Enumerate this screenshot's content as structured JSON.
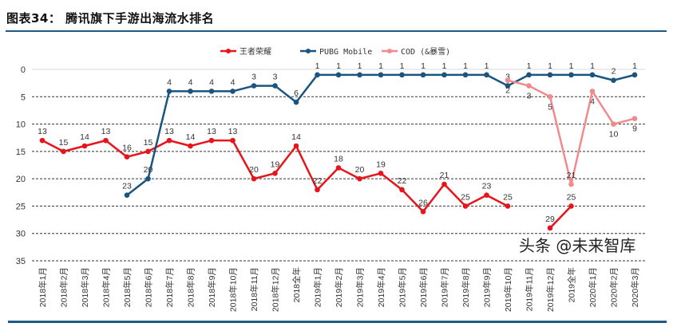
{
  "title": "图表34：  腾讯旗下手游出海流水排名",
  "watermark": "头条 @未来智库",
  "chart_data": {
    "type": "line",
    "title": "",
    "xlabel": "",
    "ylabel": "",
    "y_inverted": true,
    "ylim": [
      0,
      35
    ],
    "yticks": [
      0,
      5,
      10,
      15,
      20,
      25,
      30,
      35
    ],
    "grid": "horizontal dashed",
    "legend_position": "top",
    "categories": [
      "2018年1月",
      "2018年2月",
      "2018年3月",
      "2018年4月",
      "2018年5月",
      "2018年6月",
      "2018年7月",
      "2018年8月",
      "2018年9月",
      "2018年10月",
      "2018年11月",
      "2018年12月",
      "2018全年",
      "2019年1月",
      "2019年2月",
      "2019年3月",
      "2019年4月",
      "2019年5月",
      "2019年6月",
      "2019年7月",
      "2019年8月",
      "2019年9月",
      "2019年10月",
      "2019年11月",
      "2019年12月",
      "2019全年",
      "2020年1月",
      "2020年2月",
      "2020年3月"
    ],
    "series": [
      {
        "name": "王者荣耀",
        "color": "#e8141b",
        "label_pos": "above",
        "values": [
          13,
          15,
          14,
          13,
          16,
          15,
          13,
          14,
          13,
          13,
          20,
          19,
          14,
          22,
          18,
          20,
          19,
          22,
          26,
          21,
          25,
          23,
          25,
          null,
          29,
          25,
          null,
          null,
          null
        ]
      },
      {
        "name": "PUBG Mobile",
        "color": "#1a5581",
        "label_pos": "above",
        "values": [
          null,
          null,
          null,
          null,
          23,
          20,
          4,
          4,
          4,
          4,
          3,
          3,
          6,
          1,
          1,
          1,
          1,
          1,
          1,
          1,
          1,
          1,
          3,
          1,
          1,
          1,
          1,
          2,
          1
        ]
      },
      {
        "name": "COD (&暴雪)",
        "color": "#f08a8c",
        "label_pos": "below",
        "values": [
          null,
          null,
          null,
          null,
          null,
          null,
          null,
          null,
          null,
          null,
          null,
          null,
          null,
          null,
          null,
          null,
          null,
          null,
          null,
          null,
          null,
          null,
          2,
          3,
          5,
          21,
          4,
          10,
          9
        ]
      }
    ]
  }
}
